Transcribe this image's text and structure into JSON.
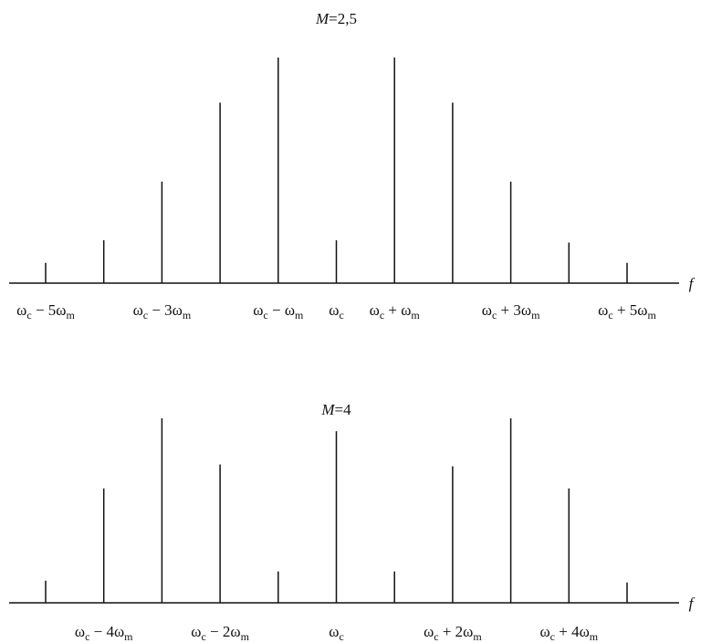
{
  "chart_data": [
    {
      "type": "bar",
      "title_var": "M",
      "title_value": "=2,5",
      "xlabel": "f",
      "x": [
        -5,
        -4,
        -3,
        -2,
        -1,
        0,
        1,
        2,
        3,
        4,
        5
      ],
      "values": [
        0.09,
        0.19,
        0.45,
        0.8,
        1.0,
        0.19,
        1.0,
        0.8,
        0.45,
        0.18,
        0.09
      ],
      "ylim": [
        0,
        1
      ],
      "tick_labels": [
        {
          "x": -5,
          "base": "ω",
          "sub1": "c",
          "op": " − 5ω",
          "sub2": "m"
        },
        {
          "x": -3,
          "base": "ω",
          "sub1": "c",
          "op": " − 3ω",
          "sub2": "m"
        },
        {
          "x": -1,
          "base": "ω",
          "sub1": "c",
          "op": " − ω",
          "sub2": "m"
        },
        {
          "x": 0,
          "base": "ω",
          "sub1": "c",
          "op": "",
          "sub2": ""
        },
        {
          "x": 1,
          "base": "ω",
          "sub1": "c",
          "op": " + ω",
          "sub2": "m"
        },
        {
          "x": 3,
          "base": "ω",
          "sub1": "c",
          "op": " + 3ω",
          "sub2": "m"
        },
        {
          "x": 5,
          "base": "ω",
          "sub1": "c",
          "op": " + 5ω",
          "sub2": "m"
        }
      ]
    },
    {
      "type": "bar",
      "title_var": "M",
      "title_value": "=4",
      "xlabel": "f",
      "x": [
        -5,
        -4,
        -3,
        -2,
        -1,
        0,
        1,
        2,
        3,
        4,
        5
      ],
      "values": [
        0.12,
        0.62,
        1.0,
        0.75,
        0.17,
        0.93,
        0.17,
        0.74,
        1.0,
        0.62,
        0.11
      ],
      "ylim": [
        0,
        1
      ],
      "tick_labels": [
        {
          "x": -4,
          "base": "ω",
          "sub1": "c",
          "op": " − 4ω",
          "sub2": "m"
        },
        {
          "x": -2,
          "base": "ω",
          "sub1": "c",
          "op": " − 2ω",
          "sub2": "m"
        },
        {
          "x": 0,
          "base": "ω",
          "sub1": "c",
          "op": "",
          "sub2": ""
        },
        {
          "x": 2,
          "base": "ω",
          "sub1": "c",
          "op": " + 2ω",
          "sub2": "m"
        },
        {
          "x": 4,
          "base": "ω",
          "sub1": "c",
          "op": " + 4ω",
          "sub2": "m"
        }
      ]
    }
  ]
}
